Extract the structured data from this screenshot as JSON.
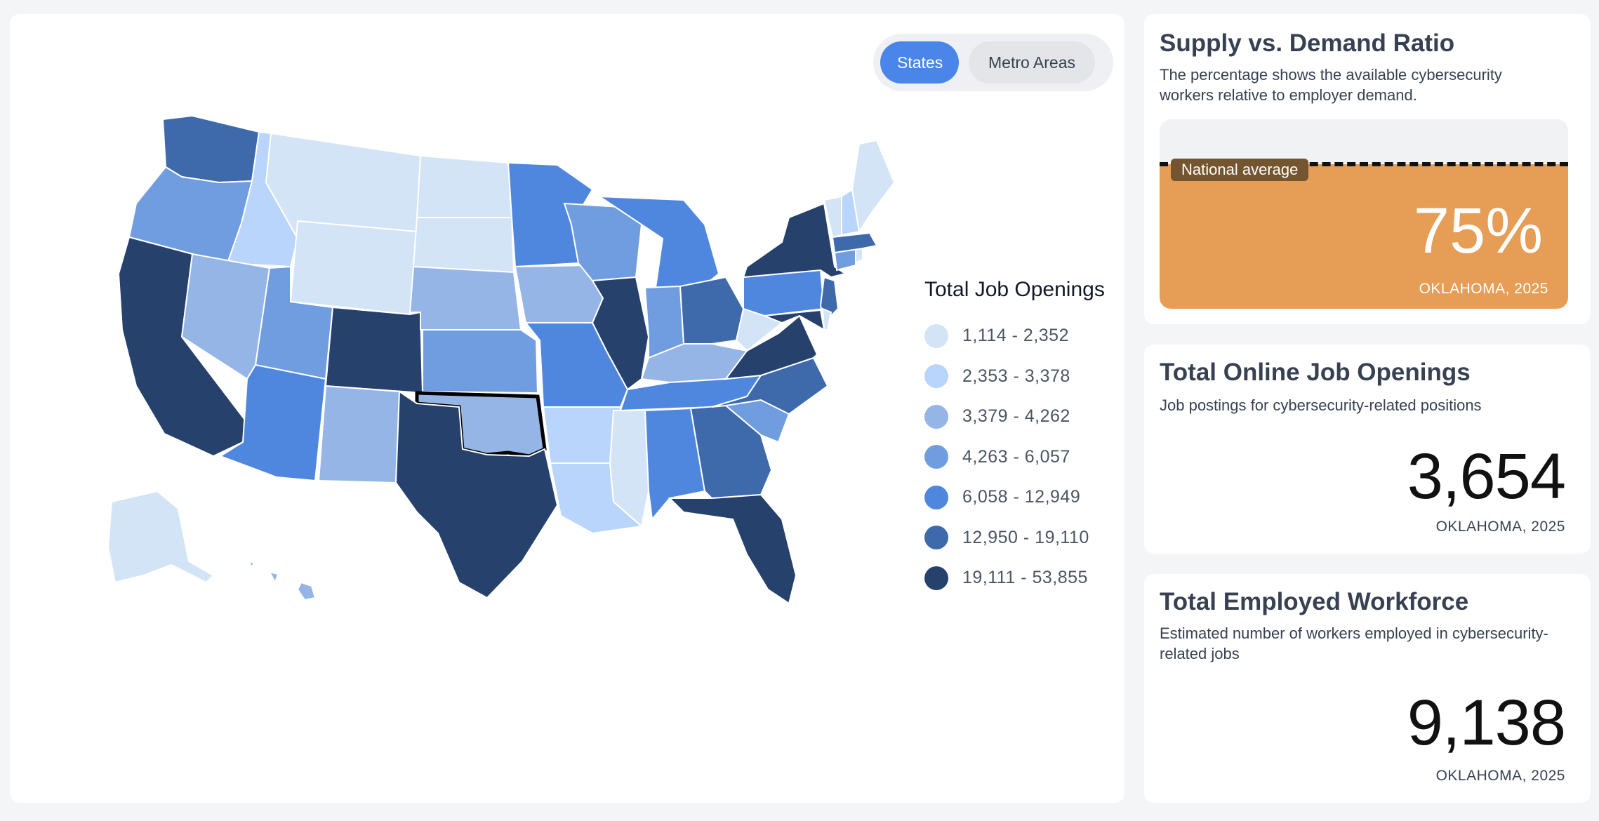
{
  "toggle": {
    "states_label": "States",
    "metro_label": "Metro Areas",
    "active": "States"
  },
  "map": {
    "highlighted_state": "Oklahoma",
    "outline_color": "#000000"
  },
  "legend": {
    "title": "Total Job Openings",
    "items": [
      {
        "label": "1,114 - 2,352",
        "color": "#d4e4f7"
      },
      {
        "label": "2,353 - 3,378",
        "color": "#b9d5fb"
      },
      {
        "label": "3,379 - 4,262",
        "color": "#94b5e6"
      },
      {
        "label": "4,263 - 6,057",
        "color": "#709de0"
      },
      {
        "label": "6,058 - 12,949",
        "color": "#4f87df"
      },
      {
        "label": "12,950 - 19,110",
        "color": "#3e69ab"
      },
      {
        "label": "19,111 - 53,855",
        "color": "#26416b"
      }
    ]
  },
  "ratio_card": {
    "title": "Supply vs. Demand Ratio",
    "description": "The percentage shows the available cybersecurity workers relative to employer demand.",
    "national_average_label": "National average",
    "value_percent": 75,
    "value_label": "75%",
    "caption": "OKLAHOMA, 2025",
    "fill_color": "#e69d55"
  },
  "openings_card": {
    "title": "Total Online Job Openings",
    "description": "Job postings for cybersecurity-related positions",
    "value": "3,654",
    "caption": "OKLAHOMA, 2025"
  },
  "workforce_card": {
    "title": "Total Employed Workforce",
    "description": "Estimated number of workers employed in cybersecurity-related jobs",
    "value": "9,138",
    "caption": "OKLAHOMA, 2025"
  }
}
